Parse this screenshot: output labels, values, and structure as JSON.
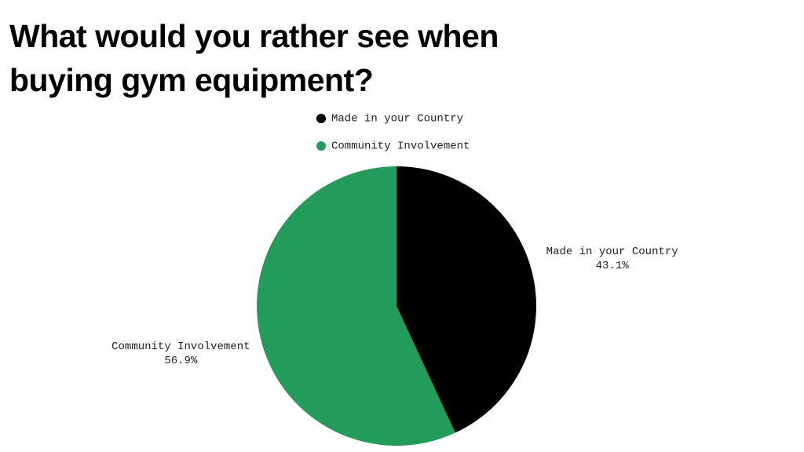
{
  "chart_data": {
    "type": "pie",
    "title": "What would you rather see when buying gym equipment?",
    "categories": [
      "Made in your Country",
      "Community Involvement"
    ],
    "values": [
      43.1,
      56.9
    ],
    "value_labels": [
      "43.1%",
      "56.9%"
    ],
    "colors": [
      "#000000",
      "#239b5b"
    ],
    "legend": "top"
  }
}
